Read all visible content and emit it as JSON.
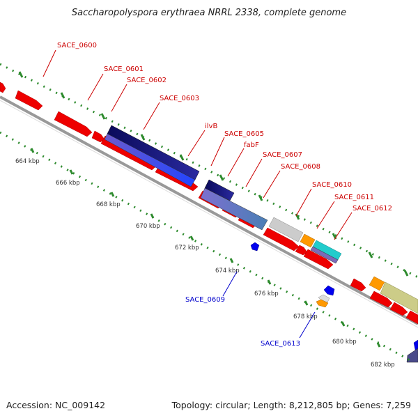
{
  "title": "Saccharopolyspora erythraea NRRL 2338, complete genome",
  "footer": {
    "accession": "Accession: NC_009142",
    "topology": "Topology: circular; Length: 8,212,805 bp; Genes: 7,259"
  },
  "ticks": [
    "664 kbp",
    "666 kbp",
    "668 kbp",
    "670 kbp",
    "672 kbp",
    "674 kbp",
    "676 kbp",
    "678 kbp",
    "680 kbp",
    "682 kbp"
  ],
  "gene_labels": [
    {
      "text": "SACE_0600",
      "color": "#cc0000"
    },
    {
      "text": "SACE_0601",
      "color": "#cc0000"
    },
    {
      "text": "SACE_0602",
      "color": "#cc0000"
    },
    {
      "text": "SACE_0603",
      "color": "#cc0000"
    },
    {
      "text": "ilvB",
      "color": "#cc0000"
    },
    {
      "text": "SACE_0605",
      "color": "#cc0000"
    },
    {
      "text": "fabF",
      "color": "#cc0000"
    },
    {
      "text": "SACE_0607",
      "color": "#cc0000"
    },
    {
      "text": "SACE_0608",
      "color": "#cc0000"
    },
    {
      "text": "SACE_0610",
      "color": "#cc0000"
    },
    {
      "text": "SACE_0611",
      "color": "#cc0000"
    },
    {
      "text": "SACE_0612",
      "color": "#cc0000"
    },
    {
      "text": "SACE_0609",
      "color": "#0000cc"
    },
    {
      "text": "SACE_0613",
      "color": "#0000cc"
    }
  ],
  "colors": {
    "forward_gene": "#ee0000",
    "backbone": "#999999",
    "tick_green": "#2e8b2e",
    "reverse_blue": "#0000ee",
    "label_red": "#cc0000",
    "label_blue": "#0000cc"
  }
}
